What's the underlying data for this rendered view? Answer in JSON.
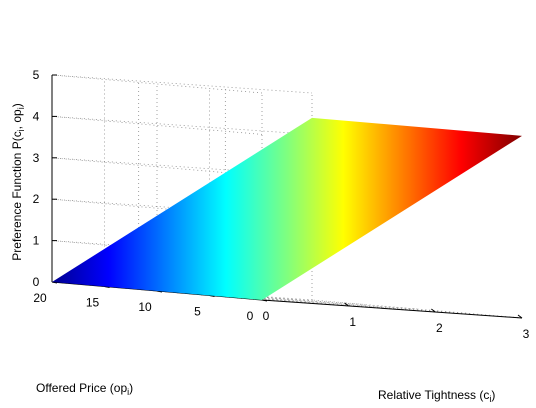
{
  "chart_data": {
    "type": "surface",
    "title": "",
    "zlabel": "Preference Function P(c_i, op_i)",
    "xlabel": "Relative Tightness (c_i)",
    "ylabel": "Offered Price (op_i)",
    "x_range": [
      0,
      3
    ],
    "y_range": [
      0,
      20
    ],
    "z_range": [
      0,
      5
    ],
    "x_ticks": [
      "0",
      "1",
      "2",
      "3"
    ],
    "y_ticks": [
      "0",
      "5",
      "10",
      "15",
      "20"
    ],
    "z_ticks": [
      "0",
      "1",
      "2",
      "3",
      "4",
      "5"
    ],
    "surface_corners": [
      {
        "x": 0,
        "y": 20,
        "z": 0
      },
      {
        "x": 0,
        "y": 0,
        "z": 0
      },
      {
        "x": 3,
        "y": 0,
        "z": 4.4
      },
      {
        "x": 3,
        "y": 20,
        "z": 4.4
      }
    ],
    "colormap": "jet",
    "grid": true
  }
}
